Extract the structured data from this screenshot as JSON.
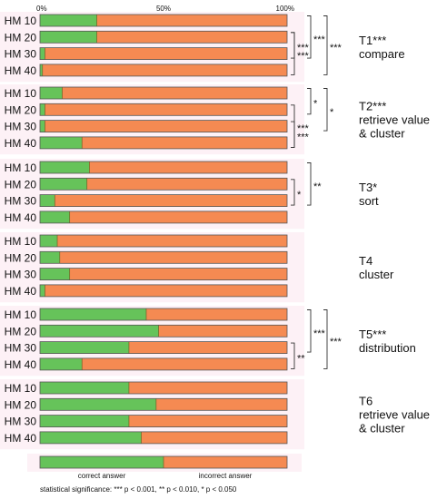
{
  "chart_data": {
    "type": "bar",
    "orientation": "horizontal",
    "stacked": true,
    "axis": {
      "ticks": [
        "0%",
        "50%",
        "100%"
      ],
      "xlim": [
        0,
        100
      ]
    },
    "legend": {
      "correct": "correct answer",
      "incorrect": "incorrect answer",
      "correct_share": 50
    },
    "colors": {
      "correct": "#66c35a",
      "incorrect": "#f58a52",
      "band": "#fdf1f6",
      "bracket": "#333333"
    },
    "footnote": "statistical significance: *** p < 0.001, ** p < 0.010, * p < 0.050",
    "groups": [
      {
        "task_lines": [
          "T1***",
          "compare"
        ],
        "rows": [
          {
            "label": "HM 10",
            "correct": 23
          },
          {
            "label": "HM 20",
            "correct": 23
          },
          {
            "label": "HM 30",
            "correct": 2
          },
          {
            "label": "HM 40",
            "correct": 1
          }
        ],
        "brackets": [
          {
            "from": 0,
            "to": 2,
            "stars": "***",
            "level": 1
          },
          {
            "from": 0,
            "to": 3,
            "stars": "***",
            "level": 2
          },
          {
            "from": 1,
            "to": 2,
            "stars": "***",
            "level": 0
          },
          {
            "from": 1,
            "to": 3,
            "stars": "***",
            "level": 0,
            "inner": true
          }
        ]
      },
      {
        "task_lines": [
          "T2***",
          "retrieve value",
          "& cluster"
        ],
        "rows": [
          {
            "label": "HM 10",
            "correct": 9
          },
          {
            "label": "HM 20",
            "correct": 2
          },
          {
            "label": "HM 30",
            "correct": 2
          },
          {
            "label": "HM 40",
            "correct": 17
          }
        ],
        "brackets": [
          {
            "from": 0,
            "to": 1,
            "stars": "*",
            "level": 1
          },
          {
            "from": 0,
            "to": 2,
            "stars": "*",
            "level": 2
          },
          {
            "from": 1,
            "to": 3,
            "stars": "***",
            "level": 0
          },
          {
            "from": 2,
            "to": 3,
            "stars": "***",
            "level": 0,
            "inner": true
          }
        ]
      },
      {
        "task_lines": [
          "T3*",
          "sort"
        ],
        "rows": [
          {
            "label": "HM 10",
            "correct": 20
          },
          {
            "label": "HM 20",
            "correct": 19
          },
          {
            "label": "HM 30",
            "correct": 6
          },
          {
            "label": "HM 40",
            "correct": 12
          }
        ],
        "brackets": [
          {
            "from": 0,
            "to": 2,
            "stars": "**",
            "level": 1
          },
          {
            "from": 1,
            "to": 2,
            "stars": "*",
            "level": 0
          }
        ]
      },
      {
        "task_lines": [
          "T4",
          "cluster"
        ],
        "rows": [
          {
            "label": "HM 10",
            "correct": 7
          },
          {
            "label": "HM 20",
            "correct": 8
          },
          {
            "label": "HM 30",
            "correct": 12
          },
          {
            "label": "HM 40",
            "correct": 2
          }
        ],
        "brackets": []
      },
      {
        "task_lines": [
          "T5***",
          "distribution"
        ],
        "rows": [
          {
            "label": "HM 10",
            "correct": 43
          },
          {
            "label": "HM 20",
            "correct": 48
          },
          {
            "label": "HM 30",
            "correct": 36
          },
          {
            "label": "HM 40",
            "correct": 17
          }
        ],
        "brackets": [
          {
            "from": 0,
            "to": 2,
            "stars": "***",
            "level": 1
          },
          {
            "from": 0,
            "to": 3,
            "stars": "***",
            "level": 2
          },
          {
            "from": 2,
            "to": 3,
            "stars": "**",
            "level": 0
          }
        ]
      },
      {
        "task_lines": [
          "T6",
          "retrieve value",
          "& cluster"
        ],
        "rows": [
          {
            "label": "HM 10",
            "correct": 36
          },
          {
            "label": "HM 20",
            "correct": 47
          },
          {
            "label": "HM 30",
            "correct": 36
          },
          {
            "label": "HM 40",
            "correct": 41
          }
        ],
        "brackets": []
      }
    ]
  }
}
